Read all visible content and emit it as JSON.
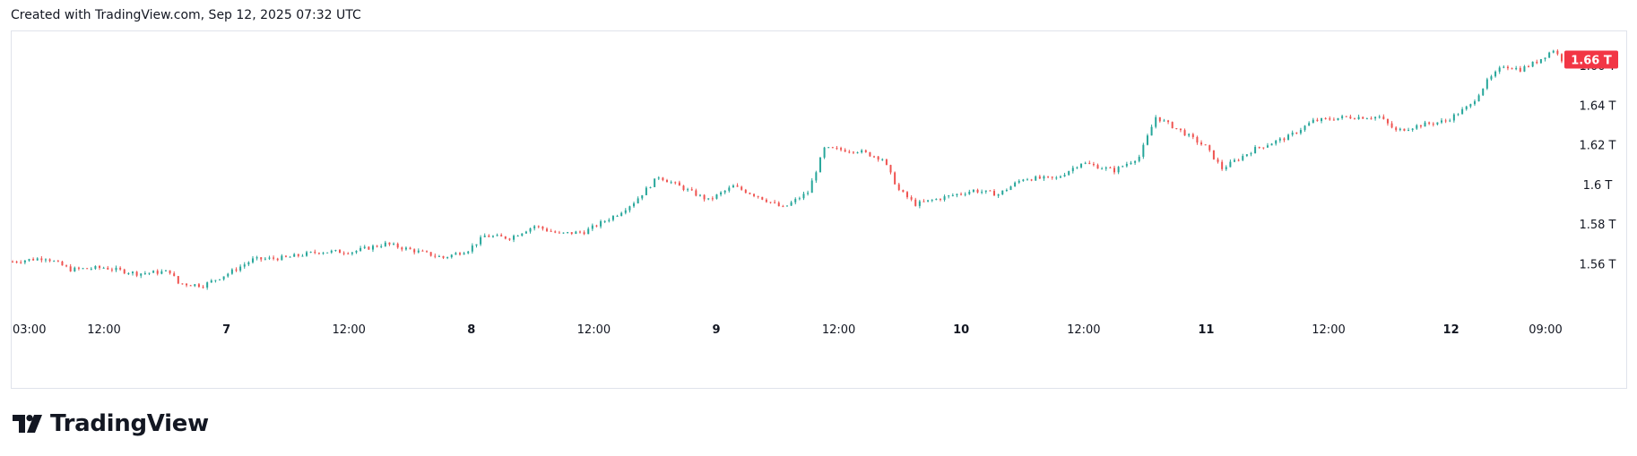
{
  "header": {
    "text": "Created with TradingView.com, Sep 12, 2025 07:32 UTC"
  },
  "brand": {
    "name": "TradingView",
    "icon": "tradingview-logo-icon"
  },
  "colors": {
    "up": "#26a69a",
    "down": "#ef5350",
    "badge": "#f23645",
    "axis_text": "#131722",
    "border": "#e0e3eb"
  },
  "chart_data": {
    "type": "candlestick",
    "title": "",
    "xlabel": "",
    "ylabel": "",
    "ylim": [
      1.5375,
      1.675
    ],
    "y_unit": "T",
    "y_ticks": [
      1.56,
      1.58,
      1.6,
      1.62,
      1.64,
      1.66
    ],
    "y_tick_labels": [
      "1.56 T",
      "1.58 T",
      "1.6 T",
      "1.62 T",
      "1.64 T",
      "1.66 T"
    ],
    "x_ticks": [
      {
        "label": "03:00",
        "bold": false
      },
      {
        "label": "12:00",
        "bold": false
      },
      {
        "label": "7",
        "bold": true
      },
      {
        "label": "12:00",
        "bold": false
      },
      {
        "label": "8",
        "bold": true
      },
      {
        "label": "12:00",
        "bold": false
      },
      {
        "label": "9",
        "bold": true
      },
      {
        "label": "12:00",
        "bold": false
      },
      {
        "label": "10",
        "bold": true
      },
      {
        "label": "12:00",
        "bold": false
      },
      {
        "label": "11",
        "bold": true
      },
      {
        "label": "12:00",
        "bold": false
      },
      {
        "label": "12",
        "bold": true
      },
      {
        "label": "09:00",
        "bold": false
      }
    ],
    "last_price_label": "1.66 T",
    "last_price": 1.663,
    "trend_points": [
      [
        0,
        1.561
      ],
      [
        8,
        1.563
      ],
      [
        14,
        1.557
      ],
      [
        22,
        1.558
      ],
      [
        30,
        1.555
      ],
      [
        38,
        1.556
      ],
      [
        40,
        1.55
      ],
      [
        46,
        1.549
      ],
      [
        52,
        1.555
      ],
      [
        58,
        1.562
      ],
      [
        66,
        1.563
      ],
      [
        74,
        1.566
      ],
      [
        82,
        1.566
      ],
      [
        90,
        1.57
      ],
      [
        98,
        1.566
      ],
      [
        104,
        1.563
      ],
      [
        110,
        1.567
      ],
      [
        114,
        1.574
      ],
      [
        120,
        1.573
      ],
      [
        126,
        1.579
      ],
      [
        132,
        1.575
      ],
      [
        138,
        1.576
      ],
      [
        146,
        1.585
      ],
      [
        150,
        1.591
      ],
      [
        156,
        1.604
      ],
      [
        162,
        1.598
      ],
      [
        168,
        1.592
      ],
      [
        174,
        1.599
      ],
      [
        180,
        1.594
      ],
      [
        186,
        1.588
      ],
      [
        192,
        1.596
      ],
      [
        196,
        1.618
      ],
      [
        204,
        1.617
      ],
      [
        210,
        1.613
      ],
      [
        214,
        1.597
      ],
      [
        218,
        1.59
      ],
      [
        226,
        1.594
      ],
      [
        232,
        1.597
      ],
      [
        238,
        1.595
      ],
      [
        244,
        1.603
      ],
      [
        252,
        1.603
      ],
      [
        258,
        1.611
      ],
      [
        266,
        1.607
      ],
      [
        272,
        1.614
      ],
      [
        276,
        1.634
      ],
      [
        282,
        1.627
      ],
      [
        288,
        1.619
      ],
      [
        292,
        1.608
      ],
      [
        300,
        1.618
      ],
      [
        308,
        1.624
      ],
      [
        314,
        1.632
      ],
      [
        322,
        1.634
      ],
      [
        330,
        1.634
      ],
      [
        334,
        1.627
      ],
      [
        340,
        1.63
      ],
      [
        346,
        1.632
      ],
      [
        352,
        1.64
      ],
      [
        356,
        1.652
      ],
      [
        360,
        1.66
      ],
      [
        364,
        1.658
      ],
      [
        368,
        1.662
      ],
      [
        372,
        1.668
      ],
      [
        374,
        1.663
      ]
    ],
    "n_candles": 375,
    "grid": false
  }
}
